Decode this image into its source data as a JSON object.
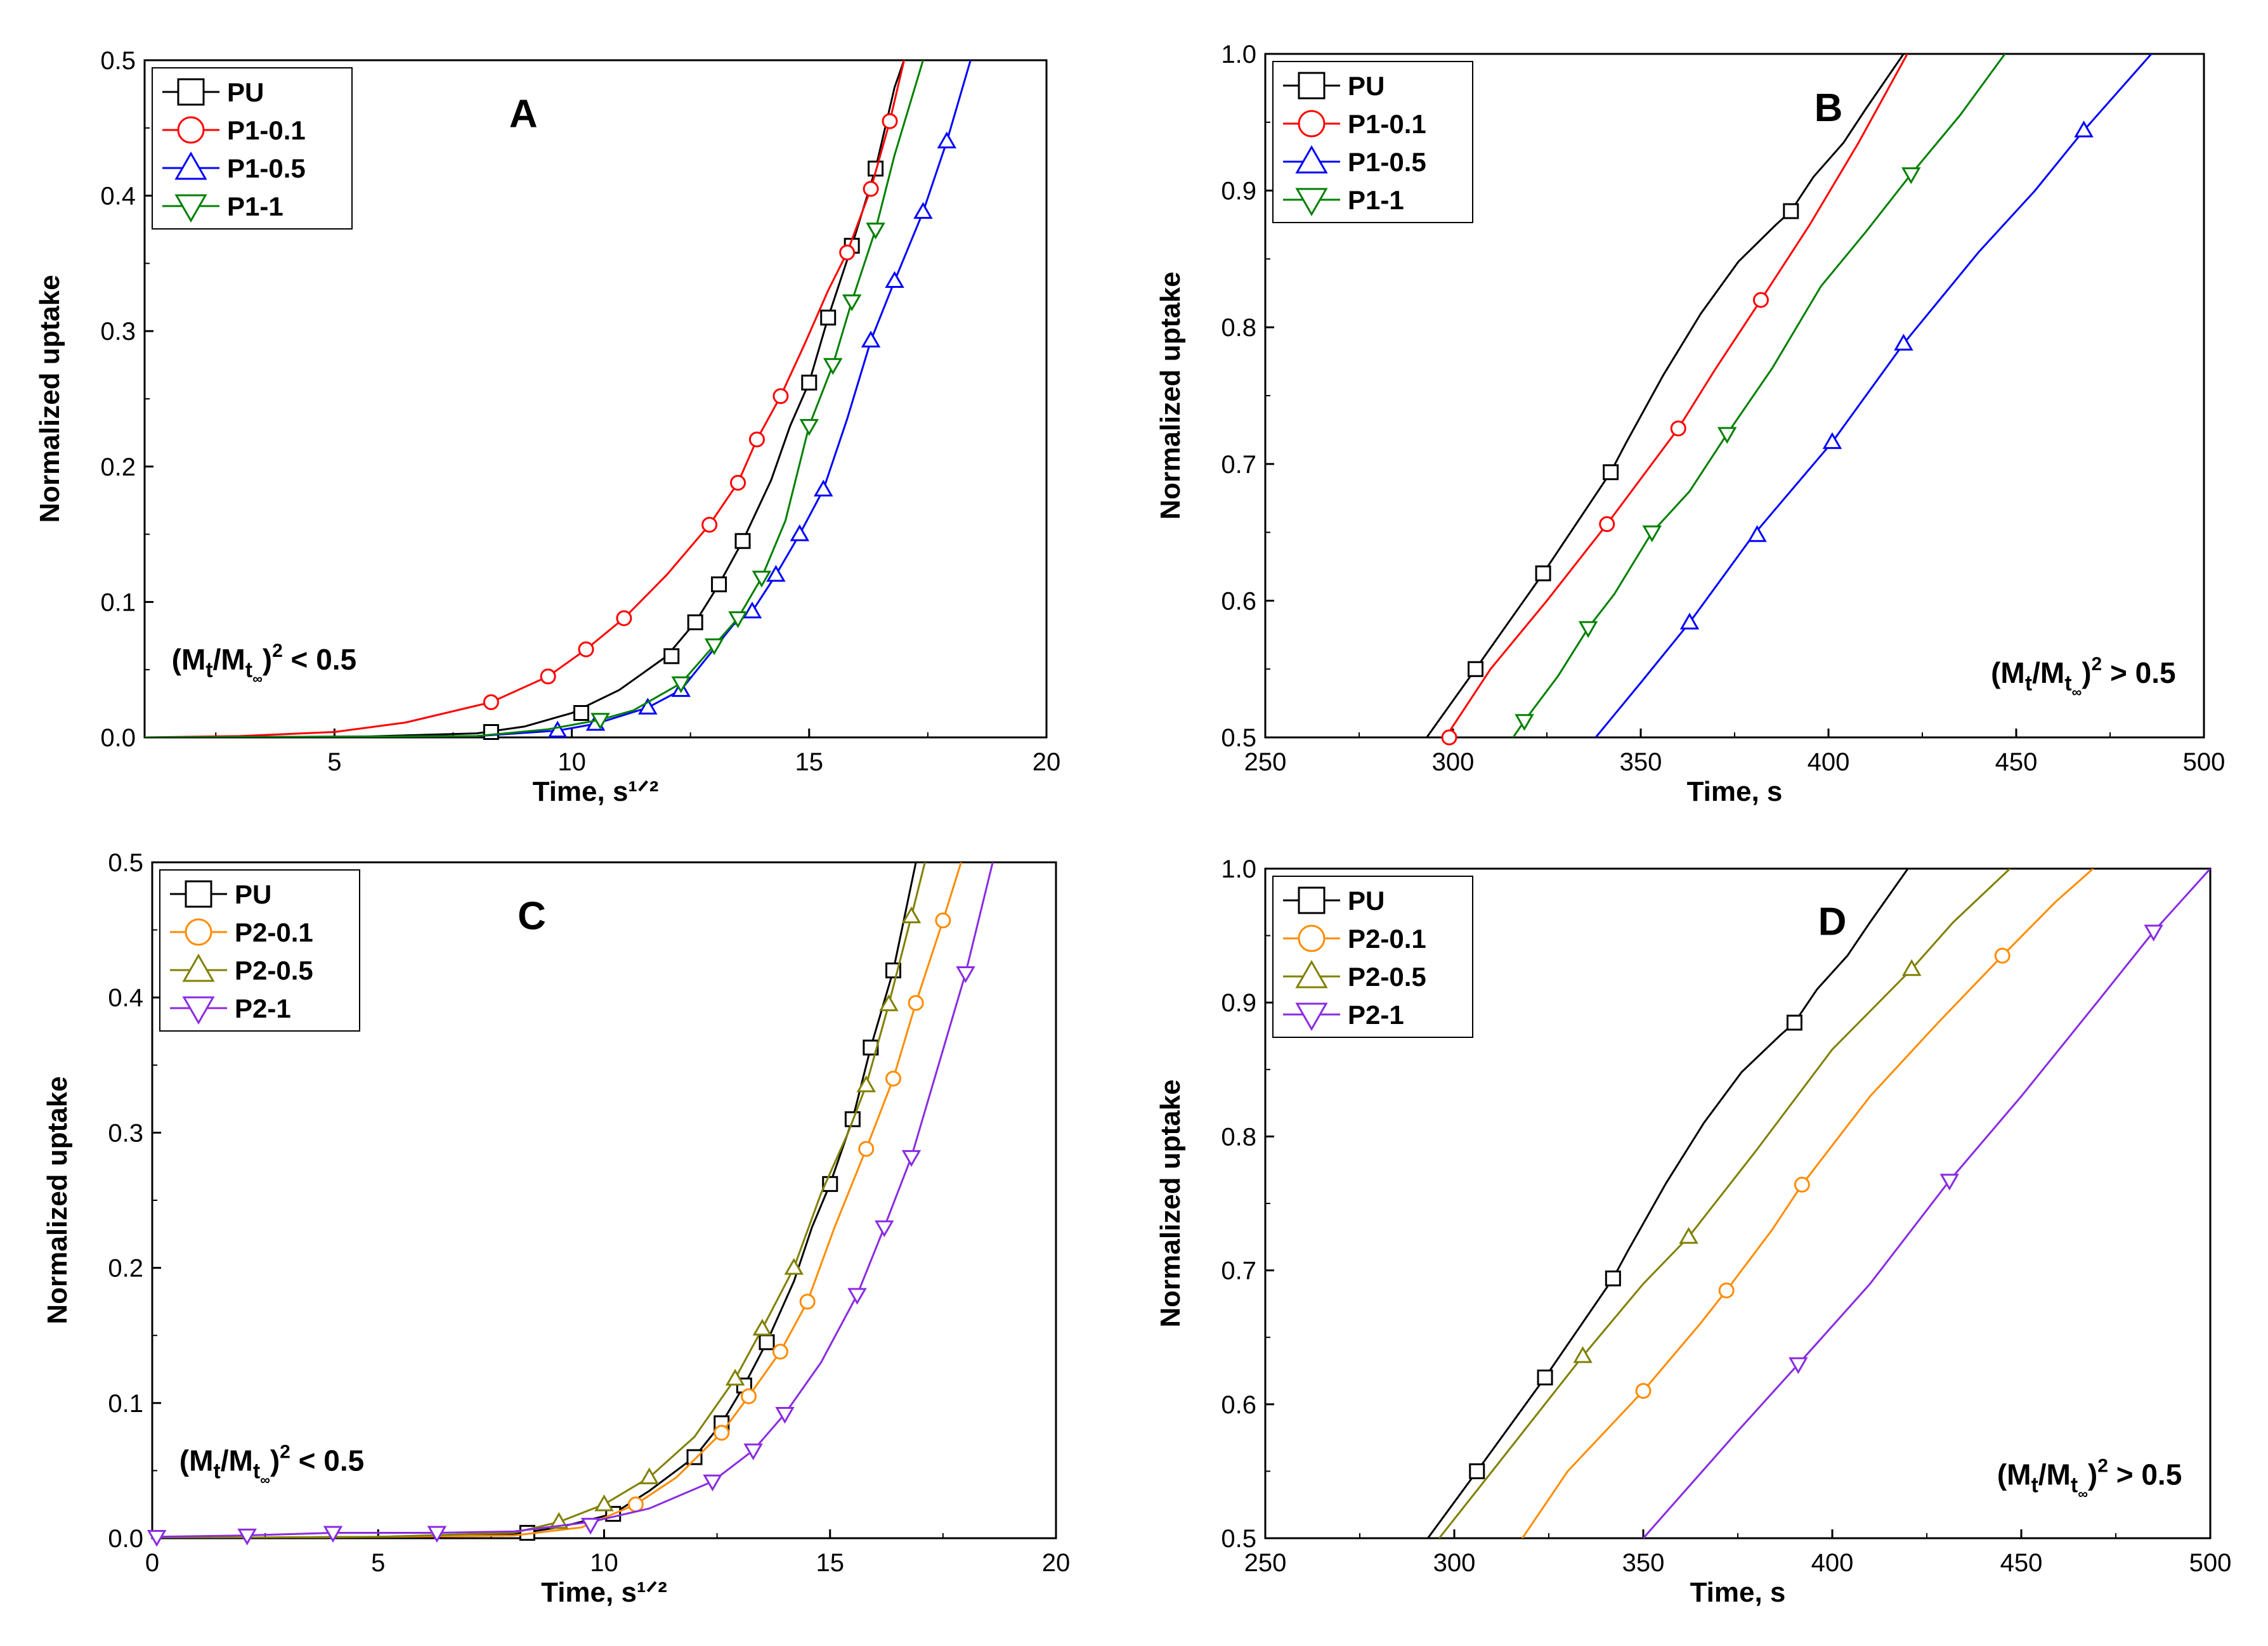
{
  "chart_data": [
    {
      "panel": "A",
      "type": "line",
      "annotation": "(Mt/Mt∞)² < 0.5",
      "xlabel": "Time, s¹ᐟ²",
      "ylabel": "Normalized uptake",
      "xlim": [
        1,
        20
      ],
      "ylim": [
        0,
        0.5
      ],
      "xticks": [
        5,
        10,
        15,
        20
      ],
      "yticks": [
        0.0,
        0.1,
        0.2,
        0.3,
        0.4,
        0.5
      ],
      "xtick_labels": [
        "5",
        "10",
        "15",
        "20"
      ],
      "ytick_labels": [
        "0.0",
        "0.1",
        "0.2",
        "0.3",
        "0.4",
        "0.5"
      ],
      "series": [
        {
          "name": "PU",
          "color": "#000000",
          "marker": "square",
          "x": [
            1,
            5,
            8,
            9,
            10,
            11,
            12,
            12.6,
            13.1,
            13.6,
            14.2,
            14.6,
            15,
            15.4,
            15.9,
            16.4,
            16.8,
            17
          ],
          "y": [
            0,
            0,
            0.003,
            0.008,
            0.018,
            0.035,
            0.06,
            0.085,
            0.113,
            0.145,
            0.19,
            0.23,
            0.262,
            0.31,
            0.363,
            0.42,
            0.48,
            0.5
          ],
          "marker_x": [
            8.3,
            10.2,
            12.1,
            12.6,
            13.1,
            13.6,
            15.0,
            15.4,
            15.9,
            16.4
          ],
          "marker_y": [
            0.004,
            0.018,
            0.06,
            0.085,
            0.113,
            0.145,
            0.262,
            0.31,
            0.363,
            0.42
          ]
        },
        {
          "name": "P1-0.1",
          "color": "#ff0000",
          "marker": "circle",
          "x": [
            1,
            3,
            5,
            6.5,
            8.3,
            9.5,
            10.3,
            11.1,
            12.0,
            12.9,
            13.5,
            13.9,
            14.4,
            14.9,
            15.4,
            15.8,
            16.3,
            16.7,
            17.0
          ],
          "y": [
            0,
            0.001,
            0.004,
            0.011,
            0.026,
            0.045,
            0.065,
            0.088,
            0.12,
            0.157,
            0.188,
            0.22,
            0.252,
            0.29,
            0.33,
            0.358,
            0.405,
            0.455,
            0.5
          ],
          "marker_x": [
            8.3,
            9.5,
            10.3,
            11.1,
            12.9,
            13.5,
            13.9,
            14.4,
            15.8,
            16.3,
            16.7
          ],
          "marker_y": [
            0.026,
            0.045,
            0.065,
            0.088,
            0.157,
            0.188,
            0.22,
            0.252,
            0.358,
            0.405,
            0.455
          ]
        },
        {
          "name": "P1-0.5",
          "color": "#0000ff",
          "marker": "triangle-up",
          "x": [
            1,
            8,
            9.7,
            10.5,
            11.6,
            12.3,
            13.4,
            13.8,
            14.3,
            14.8,
            15.3,
            15.8,
            16.3,
            16.8,
            17.4,
            17.9,
            18.4
          ],
          "y": [
            0,
            0.001,
            0.005,
            0.01,
            0.022,
            0.035,
            0.083,
            0.093,
            0.12,
            0.15,
            0.183,
            0.235,
            0.293,
            0.337,
            0.388,
            0.44,
            0.5
          ],
          "marker_x": [
            9.7,
            10.5,
            11.6,
            12.3,
            13.8,
            14.3,
            14.8,
            15.3,
            16.3,
            16.8,
            17.4,
            17.9
          ],
          "marker_y": [
            0.005,
            0.01,
            0.022,
            0.035,
            0.093,
            0.12,
            0.15,
            0.183,
            0.293,
            0.337,
            0.388,
            0.44
          ]
        },
        {
          "name": "P1-1",
          "color": "#008000",
          "marker": "triangle-down",
          "x": [
            1,
            8,
            9.5,
            10.6,
            11.3,
            12.3,
            13.0,
            13.5,
            14.0,
            14.5,
            15.0,
            15.5,
            15.9,
            16.4,
            16.8,
            17.4
          ],
          "y": [
            0,
            0.001,
            0.006,
            0.013,
            0.02,
            0.04,
            0.068,
            0.088,
            0.118,
            0.16,
            0.23,
            0.275,
            0.322,
            0.375,
            0.43,
            0.5
          ],
          "marker_x": [
            10.6,
            12.3,
            13.0,
            13.5,
            14.0,
            15.0,
            15.5,
            15.9,
            16.4
          ],
          "marker_y": [
            0.013,
            0.04,
            0.068,
            0.088,
            0.118,
            0.23,
            0.275,
            0.322,
            0.375
          ]
        }
      ]
    },
    {
      "panel": "B",
      "type": "line",
      "annotation": "(Mt/Mt∞)² > 0.5",
      "xlabel": "Time, s",
      "ylabel": "Normalized uptake",
      "xlim": [
        250,
        500
      ],
      "ylim": [
        0.5,
        1.0
      ],
      "xticks": [
        250,
        300,
        350,
        400,
        450,
        500
      ],
      "yticks": [
        0.5,
        0.6,
        0.7,
        0.8,
        0.9,
        1.0
      ],
      "xtick_labels": [
        "250",
        "300",
        "350",
        "400",
        "450",
        "500"
      ],
      "ytick_labels": [
        "0.5",
        "0.6",
        "0.7",
        "0.8",
        "0.9",
        "1.0"
      ],
      "series": [
        {
          "name": "PU",
          "color": "#000000",
          "marker": "square",
          "x": [
            293,
            306,
            324,
            342,
            346,
            356,
            366,
            376,
            386,
            390,
            396,
            404,
            410,
            420
          ],
          "y": [
            0.5,
            0.55,
            0.62,
            0.694,
            0.715,
            0.765,
            0.81,
            0.848,
            0.875,
            0.885,
            0.91,
            0.935,
            0.96,
            1.0
          ],
          "marker_x": [
            306,
            324,
            342,
            390
          ],
          "marker_y": [
            0.55,
            0.62,
            0.694,
            0.885
          ]
        },
        {
          "name": "P1-0.1",
          "color": "#ff0000",
          "marker": "circle",
          "x": [
            298,
            310,
            325,
            341,
            360,
            370,
            382,
            395,
            408,
            421
          ],
          "y": [
            0.5,
            0.55,
            0.6,
            0.656,
            0.726,
            0.77,
            0.82,
            0.875,
            0.935,
            1.0
          ],
          "marker_x": [
            299,
            341,
            360,
            382
          ],
          "marker_y": [
            0.5,
            0.656,
            0.726,
            0.82
          ]
        },
        {
          "name": "P1-1",
          "color": "#008000",
          "marker": "triangle-down",
          "x": [
            316,
            319,
            328,
            336,
            343,
            353,
            363,
            373,
            385,
            398,
            410,
            422,
            435,
            447
          ],
          "y": [
            0.5,
            0.512,
            0.545,
            0.58,
            0.605,
            0.65,
            0.68,
            0.722,
            0.77,
            0.83,
            0.87,
            0.912,
            0.955,
            1.0
          ],
          "marker_x": [
            319,
            336,
            353,
            373,
            422
          ],
          "marker_y": [
            0.512,
            0.58,
            0.65,
            0.722,
            0.912
          ]
        },
        {
          "name": "P1-0.5",
          "color": "#0000ff",
          "marker": "triangle-up",
          "x": [
            338,
            350,
            363,
            380,
            401,
            420,
            440,
            455,
            468,
            486
          ],
          "y": [
            0.5,
            0.54,
            0.584,
            0.648,
            0.716,
            0.788,
            0.855,
            0.9,
            0.944,
            1.0
          ],
          "marker_x": [
            363,
            381,
            401,
            420,
            468
          ],
          "marker_y": [
            0.584,
            0.648,
            0.716,
            0.788,
            0.944
          ]
        }
      ]
    },
    {
      "panel": "C",
      "type": "line",
      "annotation": "(Mt/Mt∞)² < 0.5",
      "xlabel": "Time, s¹ᐟ²",
      "ylabel": "Normalized uptake",
      "xlim": [
        0,
        20
      ],
      "ylim": [
        0,
        0.5
      ],
      "xticks": [
        0,
        5,
        10,
        15,
        20
      ],
      "yticks": [
        0.0,
        0.1,
        0.2,
        0.3,
        0.4,
        0.5
      ],
      "xtick_labels": [
        "0",
        "5",
        "10",
        "15",
        "20"
      ],
      "ytick_labels": [
        "0.0",
        "0.1",
        "0.2",
        "0.3",
        "0.4",
        "0.5"
      ],
      "series": [
        {
          "name": "PU",
          "color": "#000000",
          "marker": "square",
          "x": [
            0,
            5,
            8,
            9,
            10.2,
            11,
            12.0,
            12.6,
            13.1,
            13.6,
            14.2,
            14.6,
            15.0,
            15.5,
            15.9,
            16.4,
            16.9
          ],
          "y": [
            0,
            0.001,
            0.003,
            0.008,
            0.018,
            0.035,
            0.06,
            0.085,
            0.113,
            0.145,
            0.19,
            0.23,
            0.262,
            0.31,
            0.363,
            0.42,
            0.5
          ],
          "marker_x": [
            8.3,
            10.2,
            12.0,
            12.6,
            13.1,
            13.6,
            15.0,
            15.5,
            15.9,
            16.4
          ],
          "marker_y": [
            0.004,
            0.018,
            0.06,
            0.085,
            0.113,
            0.145,
            0.262,
            0.31,
            0.363,
            0.42
          ]
        },
        {
          "name": "P2-0.1",
          "color": "#ff8c00",
          "marker": "circle",
          "x": [
            0,
            5,
            8,
            9.5,
            10.7,
            11.6,
            12.6,
            13.2,
            13.9,
            14.5,
            15.1,
            15.8,
            16.4,
            16.9,
            17.5,
            17.9
          ],
          "y": [
            0,
            0.001,
            0.002,
            0.008,
            0.025,
            0.045,
            0.078,
            0.105,
            0.138,
            0.175,
            0.23,
            0.288,
            0.34,
            0.396,
            0.457,
            0.5
          ],
          "marker_x": [
            10.7,
            12.6,
            13.2,
            13.9,
            14.5,
            15.8,
            16.4,
            16.9,
            17.5
          ],
          "marker_y": [
            0.025,
            0.078,
            0.105,
            0.138,
            0.175,
            0.288,
            0.34,
            0.396,
            0.457
          ]
        },
        {
          "name": "P2-0.5",
          "color": "#808000",
          "marker": "triangle-up",
          "x": [
            0,
            5,
            8,
            9.0,
            10.0,
            11.0,
            12.0,
            12.9,
            13.5,
            14.2,
            14.8,
            15.4,
            15.8,
            16.3,
            16.8,
            17.1
          ],
          "y": [
            0,
            0.001,
            0.004,
            0.012,
            0.025,
            0.045,
            0.075,
            0.118,
            0.155,
            0.2,
            0.255,
            0.3,
            0.335,
            0.395,
            0.46,
            0.5
          ],
          "marker_x": [
            9.0,
            10.0,
            11.0,
            12.9,
            13.5,
            14.2,
            15.8,
            16.3,
            16.8
          ],
          "marker_y": [
            0.012,
            0.025,
            0.045,
            0.118,
            0.155,
            0.2,
            0.335,
            0.395,
            0.46
          ]
        },
        {
          "name": "P2-1",
          "color": "#8a2be2",
          "marker": "triangle-down",
          "x": [
            0,
            2.0,
            4.0,
            6.3,
            8.0,
            9.7,
            11.0,
            12.4,
            13.3,
            14.0,
            14.8,
            15.6,
            16.2,
            16.8,
            17.4,
            18.0,
            18.6
          ],
          "y": [
            0.001,
            0.002,
            0.004,
            0.004,
            0.005,
            0.012,
            0.022,
            0.042,
            0.065,
            0.092,
            0.13,
            0.18,
            0.23,
            0.282,
            0.35,
            0.418,
            0.5
          ],
          "marker_x": [
            0.1,
            2.1,
            4.0,
            6.3,
            9.7,
            12.4,
            13.3,
            14.0,
            15.6,
            16.2,
            16.8,
            18.0
          ],
          "marker_y": [
            0.001,
            0.002,
            0.004,
            0.004,
            0.01,
            0.042,
            0.065,
            0.092,
            0.18,
            0.23,
            0.282,
            0.418
          ]
        }
      ]
    },
    {
      "panel": "D",
      "type": "line",
      "annotation": "(Mt/Mt∞)² > 0.5",
      "xlabel": "Time, s",
      "ylabel": "Normalized uptake",
      "xlim": [
        250,
        500
      ],
      "ylim": [
        0.5,
        1.0
      ],
      "xticks": [
        250,
        300,
        350,
        400,
        450,
        500
      ],
      "yticks": [
        0.5,
        0.6,
        0.7,
        0.8,
        0.9,
        1.0
      ],
      "xtick_labels": [
        "250",
        "300",
        "350",
        "400",
        "450",
        "500"
      ],
      "ytick_labels": [
        "0.5",
        "0.6",
        "0.7",
        "0.8",
        "0.9",
        "1.0"
      ],
      "series": [
        {
          "name": "PU",
          "color": "#000000",
          "marker": "square",
          "x": [
            293,
            306,
            324,
            342,
            346,
            356,
            366,
            376,
            386,
            390,
            396,
            404,
            410,
            420
          ],
          "y": [
            0.5,
            0.55,
            0.62,
            0.694,
            0.715,
            0.765,
            0.81,
            0.848,
            0.875,
            0.885,
            0.91,
            0.935,
            0.96,
            1.0
          ],
          "marker_x": [
            306,
            324,
            342,
            390
          ],
          "marker_y": [
            0.55,
            0.62,
            0.694,
            0.885
          ]
        },
        {
          "name": "P2-0.5",
          "color": "#808000",
          "marker": "triangle-up",
          "x": [
            296,
            310,
            334,
            350,
            362,
            380,
            400,
            421,
            432,
            447
          ],
          "y": [
            0.5,
            0.55,
            0.636,
            0.69,
            0.725,
            0.79,
            0.865,
            0.925,
            0.96,
            1.0
          ],
          "marker_x": [
            334,
            362,
            421
          ],
          "marker_y": [
            0.636,
            0.725,
            0.925
          ]
        },
        {
          "name": "P2-0.1",
          "color": "#ff8c00",
          "marker": "circle",
          "x": [
            318,
            330,
            350,
            365,
            372,
            384,
            392,
            410,
            428,
            445,
            459,
            469
          ],
          "y": [
            0.5,
            0.55,
            0.61,
            0.66,
            0.685,
            0.73,
            0.764,
            0.83,
            0.885,
            0.935,
            0.975,
            1.0
          ],
          "marker_x": [
            350,
            372,
            392,
            445
          ],
          "marker_y": [
            0.61,
            0.685,
            0.764,
            0.935
          ]
        },
        {
          "name": "P2-1",
          "color": "#8a2be2",
          "marker": "triangle-down",
          "x": [
            350,
            360,
            375,
            391,
            410,
            431,
            450,
            470,
            485,
            500
          ],
          "y": [
            0.5,
            0.532,
            0.58,
            0.63,
            0.69,
            0.767,
            0.83,
            0.9,
            0.953,
            1.0
          ],
          "marker_x": [
            391,
            431,
            485
          ],
          "marker_y": [
            0.63,
            0.767,
            0.953
          ]
        }
      ]
    }
  ]
}
